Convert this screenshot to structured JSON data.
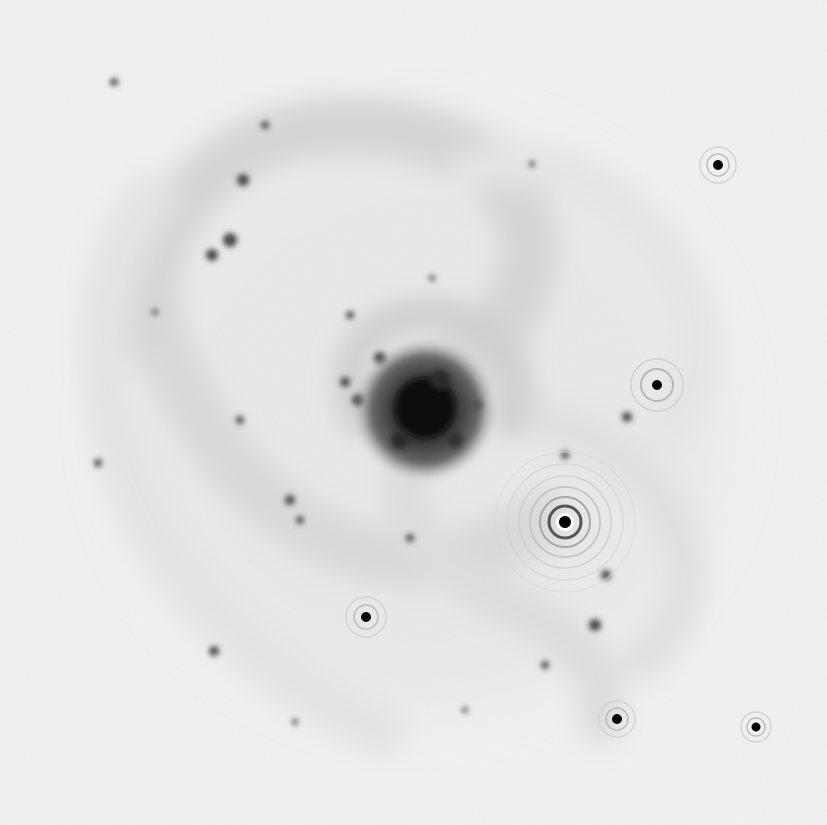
{
  "image": {
    "kind": "astronomical-image",
    "subject": "spiral-galaxy",
    "rendering": "grayscale",
    "colors": {
      "background": "#f2f2f2",
      "arm_haze": "#d9d9d9",
      "arm_haze_light": "#e4e4e4",
      "core": "#111111",
      "knot": "#4a4a4a",
      "star": "#000000",
      "ring": "#cfcfcf"
    }
  }
}
